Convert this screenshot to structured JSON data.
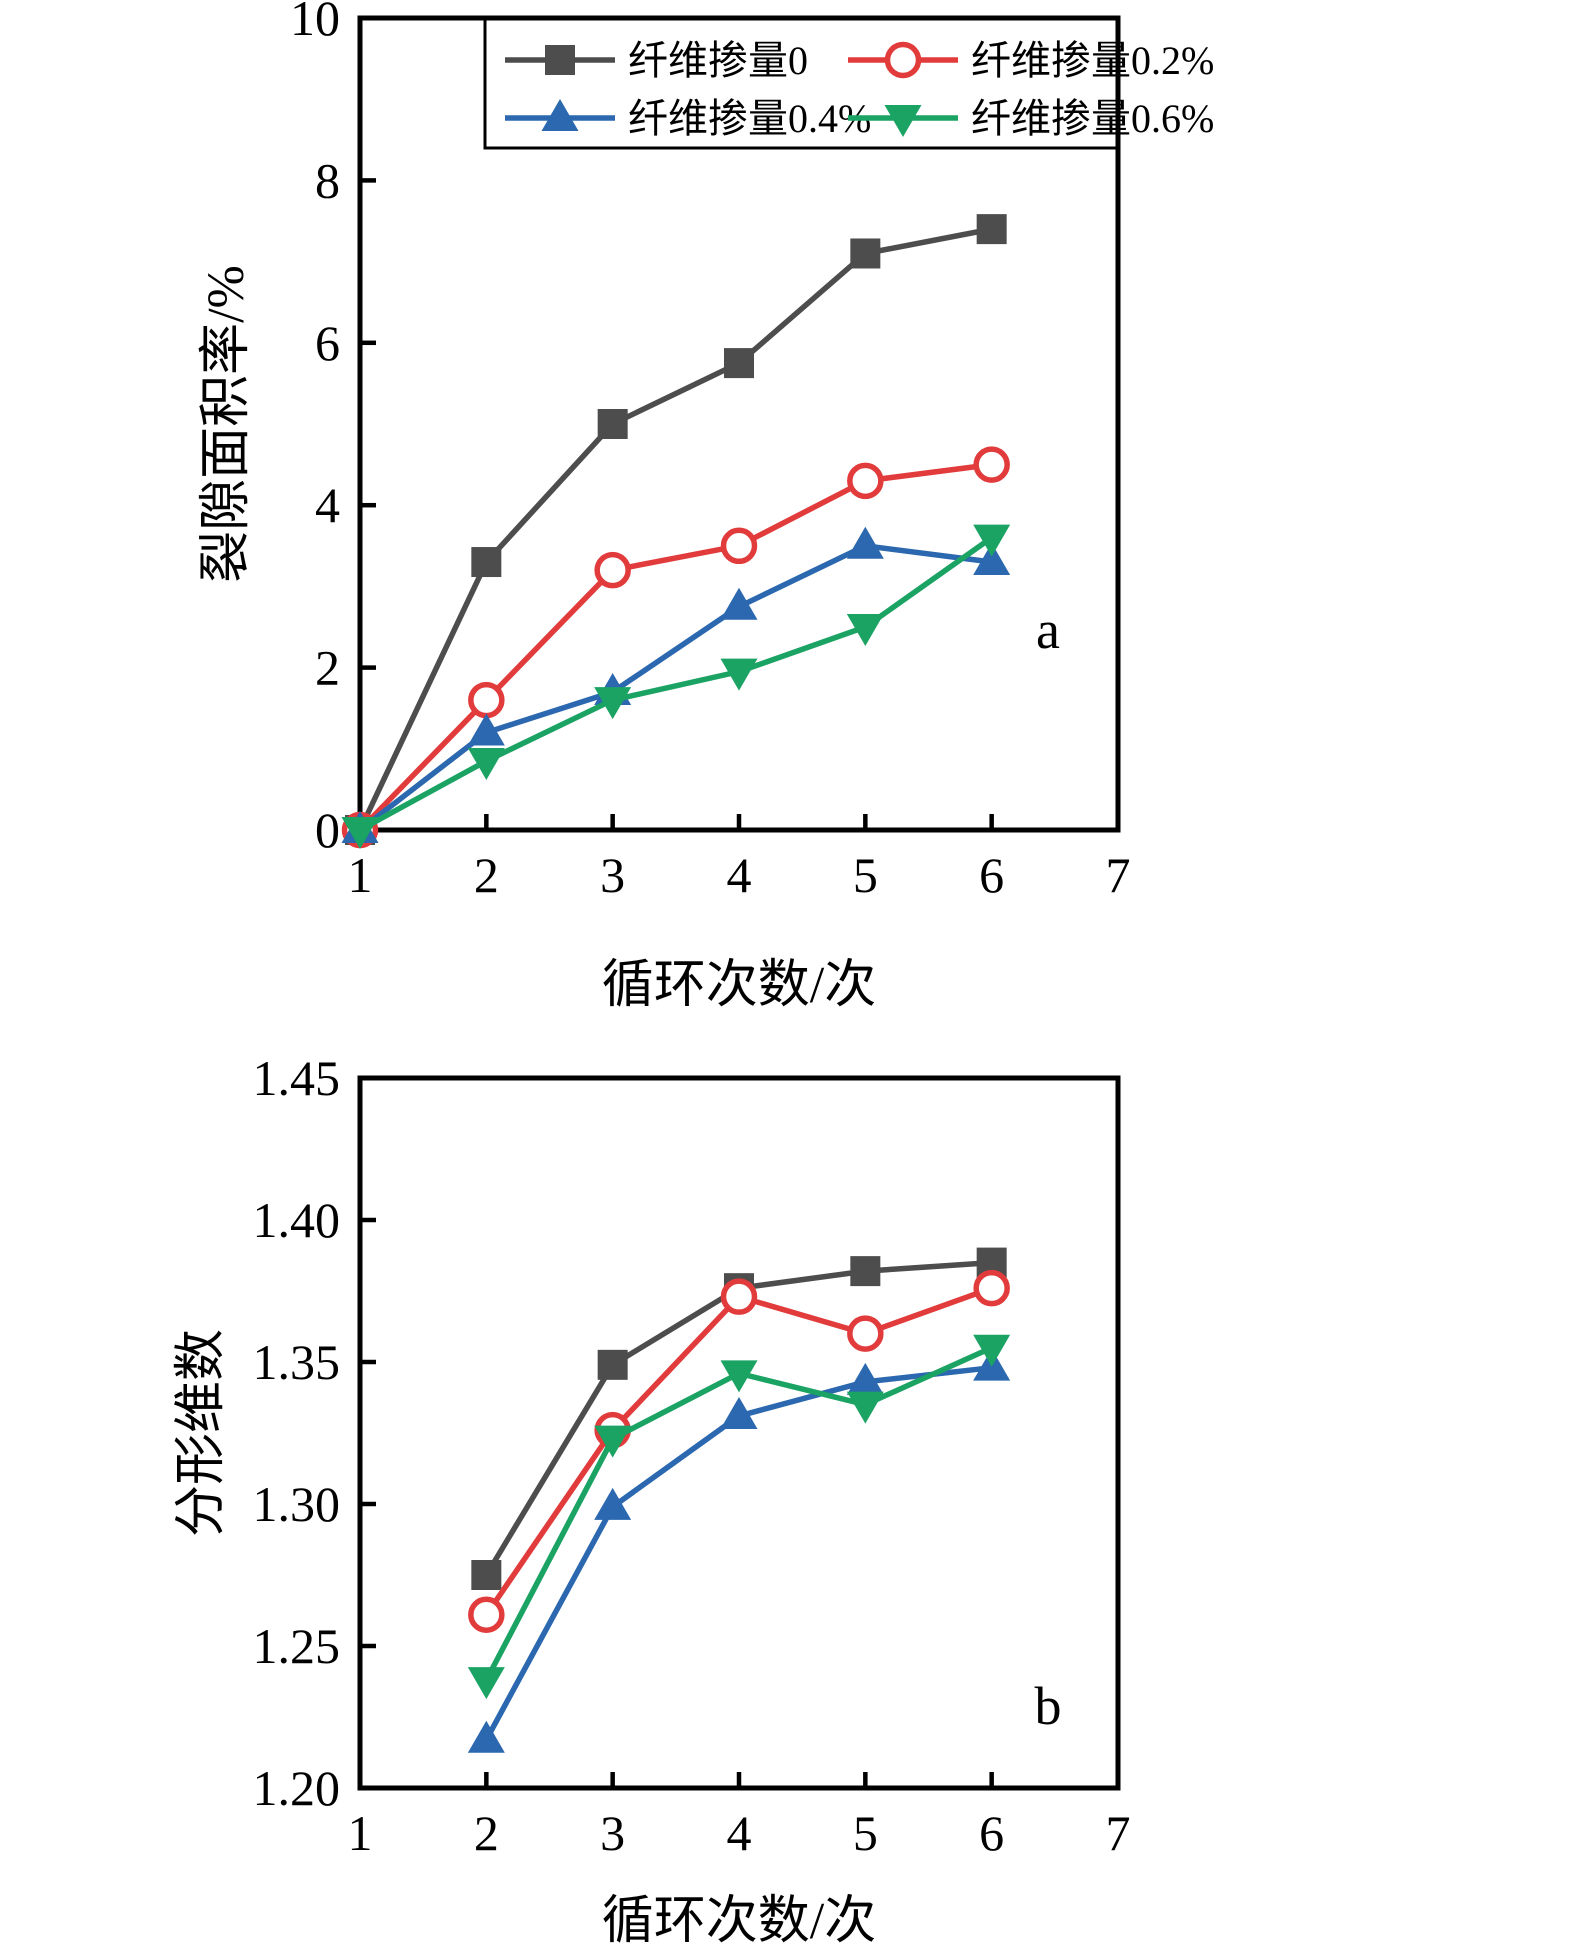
{
  "figure": {
    "background": "#ffffff",
    "panel_a_label": "a",
    "panel_b_label": "b"
  },
  "chart_data": [
    {
      "id": "panel-a",
      "type": "line",
      "panel_label": "a",
      "title": "",
      "xlabel": "循环次数/次",
      "ylabel": "裂隙面积率/%",
      "xlim": [
        1,
        7
      ],
      "ylim": [
        0,
        10
      ],
      "xticks": [
        "1",
        "2",
        "3",
        "4",
        "5",
        "6",
        "7"
      ],
      "yticks": [
        "0",
        "2",
        "4",
        "6",
        "8",
        "10"
      ],
      "ytick_values": [
        0,
        2,
        4,
        6,
        8,
        10
      ],
      "grid": "off",
      "legend_position": "top-inside-box",
      "x": [
        1,
        2,
        3,
        4,
        5,
        6
      ],
      "series": [
        {
          "name": "纤维掺量0",
          "color": "#4d4d4d",
          "marker": "square",
          "marker_fill": "solid",
          "values": [
            0,
            3.3,
            5.0,
            5.75,
            7.1,
            7.4
          ]
        },
        {
          "name": "纤维掺量0.2%",
          "color": "#e23b3c",
          "marker": "circle",
          "marker_fill": "open",
          "values": [
            0,
            1.6,
            3.2,
            3.5,
            4.3,
            4.5
          ]
        },
        {
          "name": "纤维掺量0.4%",
          "color": "#2b68af",
          "marker": "triangle-up",
          "marker_fill": "solid",
          "values": [
            0,
            1.2,
            1.7,
            2.75,
            3.5,
            3.3
          ]
        },
        {
          "name": "纤维掺量0.6%",
          "color": "#1ba364",
          "marker": "triangle-down",
          "marker_fill": "solid",
          "values": [
            0,
            0.85,
            1.6,
            1.95,
            2.5,
            3.6
          ]
        }
      ]
    },
    {
      "id": "panel-b",
      "type": "line",
      "panel_label": "b",
      "title": "",
      "xlabel": "循环次数/次",
      "ylabel": "分形维数",
      "xlim": [
        1,
        7
      ],
      "ylim": [
        1.2,
        1.45
      ],
      "xticks": [
        "1",
        "2",
        "3",
        "4",
        "5",
        "6",
        "7"
      ],
      "yticks": [
        "1.20",
        "1.25",
        "1.30",
        "1.35",
        "1.40",
        "1.45"
      ],
      "ytick_values": [
        1.2,
        1.25,
        1.3,
        1.35,
        1.4,
        1.45
      ],
      "grid": "off",
      "legend_position": "none",
      "x": [
        2,
        3,
        4,
        5,
        6
      ],
      "series": [
        {
          "name": "纤维掺量0",
          "color": "#4d4d4d",
          "marker": "square",
          "marker_fill": "solid",
          "values": [
            1.275,
            1.349,
            1.376,
            1.382,
            1.385
          ]
        },
        {
          "name": "纤维掺量0.2%",
          "color": "#e23b3c",
          "marker": "circle",
          "marker_fill": "open",
          "values": [
            1.261,
            1.326,
            1.373,
            1.36,
            1.376
          ]
        },
        {
          "name": "纤维掺量0.4%",
          "color": "#2b68af",
          "marker": "triangle-up",
          "marker_fill": "solid",
          "values": [
            1.217,
            1.299,
            1.331,
            1.343,
            1.348
          ]
        },
        {
          "name": "纤维掺量0.6%",
          "color": "#1ba364",
          "marker": "triangle-down",
          "marker_fill": "solid",
          "values": [
            1.238,
            1.323,
            1.346,
            1.335,
            1.355
          ]
        }
      ]
    }
  ]
}
